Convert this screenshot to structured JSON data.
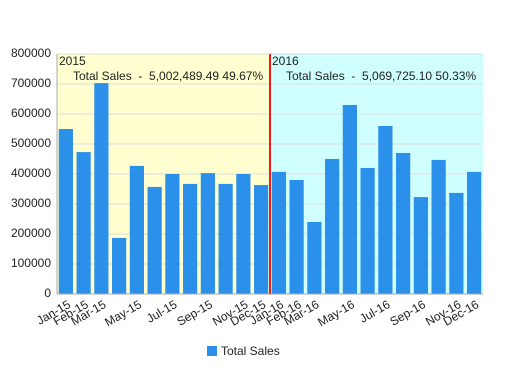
{
  "chart_data": {
    "type": "bar",
    "categories": [
      "Jan-15",
      "Feb-15",
      "Mar-15",
      null,
      "May-15",
      null,
      "Jul-15",
      null,
      "Sep-15",
      null,
      "Nov-15",
      "Dec-15",
      "Jan-16",
      "Feb-16",
      "Mar-16",
      null,
      "May-16",
      null,
      "Jul-16",
      null,
      "Sep-16",
      null,
      "Nov-16",
      "Dec-16"
    ],
    "series": [
      {
        "name": "Total Sales",
        "color": "#2b90e9",
        "values": [
          550000,
          473000,
          703000,
          187000,
          427000,
          357000,
          400000,
          367000,
          403000,
          367000,
          400000,
          363000,
          407000,
          380000,
          240000,
          450000,
          630000,
          420000,
          560000,
          470000,
          323000,
          447000,
          337000,
          407000
        ]
      }
    ],
    "ylim": [
      0,
      800000
    ],
    "yticks": [
      0,
      100000,
      200000,
      300000,
      400000,
      500000,
      600000,
      700000,
      800000
    ],
    "grid": true,
    "legend": "bottom",
    "annotations": [
      {
        "label": "2015",
        "text": "Total Sales  -  5,002,489.49 49.67%",
        "color": "#ffffd0"
      },
      {
        "label": "2016",
        "text": "Total Sales  -  5,069,725.10 50.33%",
        "color": "#d0ffff"
      }
    ],
    "divider_color": "#e8201c"
  }
}
